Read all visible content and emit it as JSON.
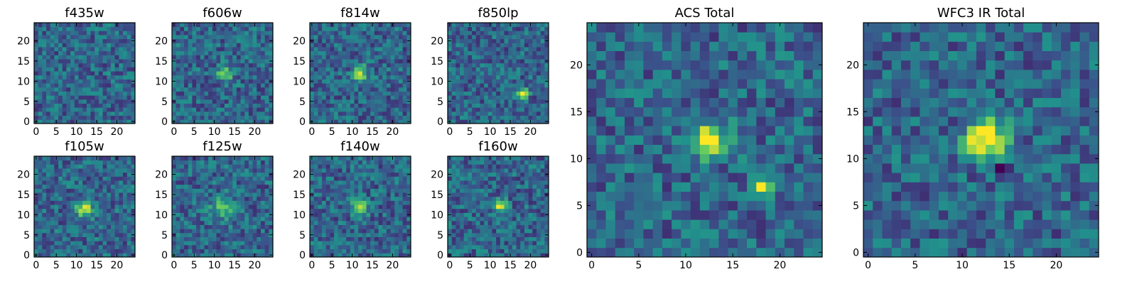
{
  "figure": {
    "colormap": "viridis",
    "colormap_stops": [
      "#440154",
      "#3b528b",
      "#21918c",
      "#5ec962",
      "#fde725"
    ]
  },
  "chart_data": [
    {
      "type": "heatmap",
      "title": "f435w",
      "xlim": [
        0,
        24
      ],
      "ylim": [
        0,
        24
      ],
      "xticks": [
        0,
        5,
        10,
        15,
        20
      ],
      "yticks": [
        0,
        5,
        10,
        15,
        20
      ],
      "grid_size": 25,
      "sources": []
    },
    {
      "type": "heatmap",
      "title": "f606w",
      "xlim": [
        0,
        24
      ],
      "ylim": [
        0,
        24
      ],
      "xticks": [
        0,
        5,
        10,
        15,
        20
      ],
      "yticks": [
        0,
        5,
        10,
        15,
        20
      ],
      "grid_size": 25,
      "sources": [
        {
          "x": 12.5,
          "y": 12,
          "amplitude": 0.5,
          "sigma": 1.3
        }
      ]
    },
    {
      "type": "heatmap",
      "title": "f814w",
      "xlim": [
        0,
        24
      ],
      "ylim": [
        0,
        24
      ],
      "xticks": [
        0,
        5,
        10,
        15,
        20
      ],
      "yticks": [
        0,
        5,
        10,
        15,
        20
      ],
      "grid_size": 25,
      "sources": [
        {
          "x": 12,
          "y": 12,
          "amplitude": 0.6,
          "sigma": 1.2
        }
      ]
    },
    {
      "type": "heatmap",
      "title": "f850lp",
      "xlim": [
        0,
        24
      ],
      "ylim": [
        0,
        24
      ],
      "xticks": [
        0,
        5,
        10,
        15,
        20
      ],
      "yticks": [
        0,
        5,
        10,
        15,
        20
      ],
      "grid_size": 25,
      "sources": [
        {
          "x": 18,
          "y": 7,
          "amplitude": 0.75,
          "sigma": 0.9
        }
      ]
    },
    {
      "type": "heatmap",
      "title": "f105w",
      "xlim": [
        0,
        24
      ],
      "ylim": [
        0,
        24
      ],
      "xticks": [
        0,
        5,
        10,
        15,
        20
      ],
      "yticks": [
        0,
        5,
        10,
        15,
        20
      ],
      "grid_size": 25,
      "sources": [
        {
          "x": 12,
          "y": 11.5,
          "amplitude": 0.6,
          "sigma": 1.4
        }
      ]
    },
    {
      "type": "heatmap",
      "title": "f125w",
      "xlim": [
        0,
        24
      ],
      "ylim": [
        0,
        24
      ],
      "xticks": [
        0,
        5,
        10,
        15,
        20
      ],
      "yticks": [
        0,
        5,
        10,
        15,
        20
      ],
      "grid_size": 25,
      "sources": [
        {
          "x": 12,
          "y": 11.5,
          "amplitude": 0.35,
          "sigma": 2.0
        }
      ]
    },
    {
      "type": "heatmap",
      "title": "f140w",
      "xlim": [
        0,
        24
      ],
      "ylim": [
        0,
        24
      ],
      "xticks": [
        0,
        5,
        10,
        15,
        20
      ],
      "yticks": [
        0,
        5,
        10,
        15,
        20
      ],
      "grid_size": 25,
      "sources": [
        {
          "x": 12,
          "y": 12,
          "amplitude": 0.45,
          "sigma": 1.4
        }
      ]
    },
    {
      "type": "heatmap",
      "title": "f160w",
      "xlim": [
        0,
        24
      ],
      "ylim": [
        0,
        24
      ],
      "xticks": [
        0,
        5,
        10,
        15,
        20
      ],
      "yticks": [
        0,
        5,
        10,
        15,
        20
      ],
      "grid_size": 25,
      "sources": [
        {
          "x": 12.5,
          "y": 12,
          "amplitude": 0.55,
          "sigma": 1.2
        }
      ]
    },
    {
      "type": "heatmap",
      "title": "ACS Total",
      "xlim": [
        0,
        24
      ],
      "ylim": [
        0,
        24
      ],
      "xticks": [
        0,
        5,
        10,
        15,
        20
      ],
      "yticks": [
        0,
        5,
        10,
        15,
        20
      ],
      "grid_size": 25,
      "sources": [
        {
          "x": 12.5,
          "y": 12,
          "amplitude": 0.75,
          "sigma": 1.3
        },
        {
          "x": 18,
          "y": 7,
          "amplitude": 0.65,
          "sigma": 0.8
        }
      ]
    },
    {
      "type": "heatmap",
      "title": "WFC3 IR Total",
      "xlim": [
        0,
        24
      ],
      "ylim": [
        0,
        24
      ],
      "xticks": [
        0,
        5,
        10,
        15,
        20
      ],
      "yticks": [
        0,
        5,
        10,
        15,
        20
      ],
      "grid_size": 25,
      "sources": [
        {
          "x": 12.5,
          "y": 12,
          "amplitude": 0.8,
          "sigma": 1.5
        },
        {
          "x": 14,
          "y": 9,
          "amplitude": -0.35,
          "sigma": 0.7
        }
      ]
    }
  ]
}
